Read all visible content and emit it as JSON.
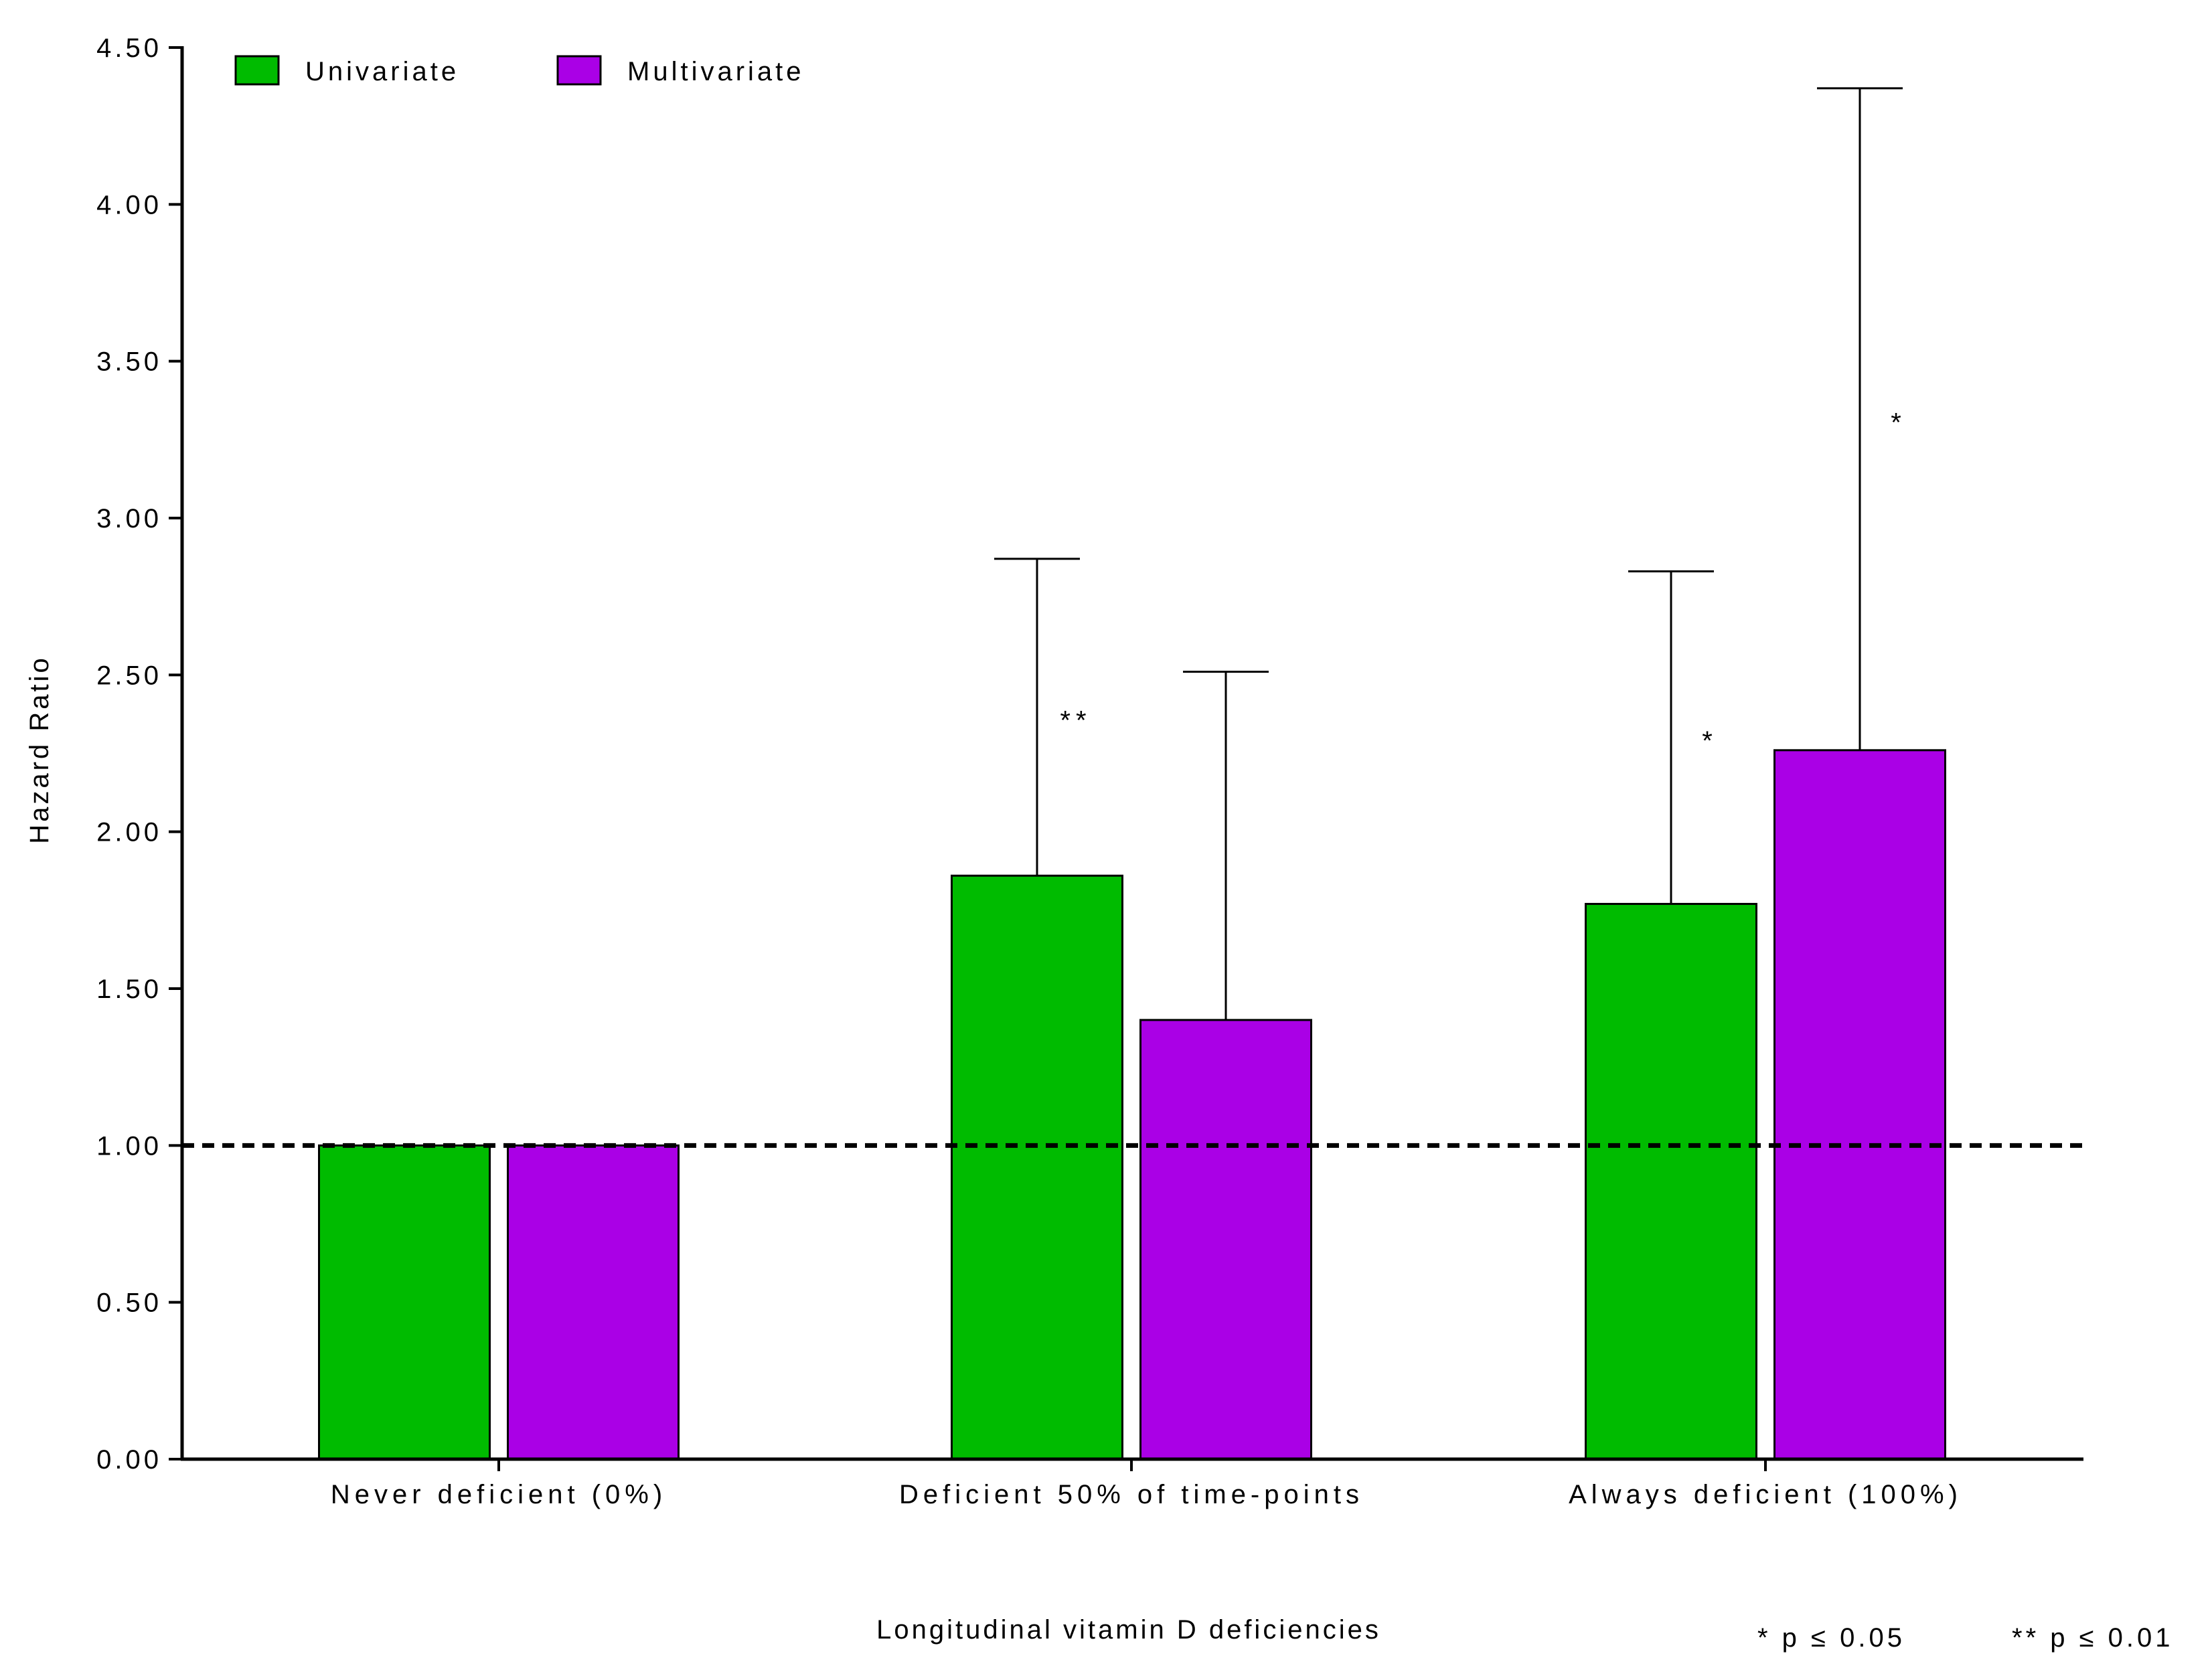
{
  "chart_data": {
    "type": "bar",
    "xlabel": "Longitudinal vitamin D deficiencies",
    "ylabel": "Hazard Ratio",
    "ylim": [
      0,
      4.5
    ],
    "yticks": [
      "0.00",
      "0.50",
      "1.00",
      "1.50",
      "2.00",
      "2.50",
      "3.00",
      "3.50",
      "4.00",
      "4.50"
    ],
    "categories": [
      "Never deficient (0%)",
      "Deficient 50% of time-points",
      "Always deficient (100%)"
    ],
    "series": [
      {
        "name": "Univariate",
        "color": "#00bb00",
        "values": [
          1.0,
          1.86,
          1.77
        ],
        "error_upper": [
          null,
          2.87,
          2.83
        ],
        "significance": [
          "",
          "**",
          "*"
        ]
      },
      {
        "name": "Multivariate",
        "color": "#aa00e6",
        "values": [
          1.0,
          1.4,
          2.26
        ],
        "error_upper": [
          null,
          2.51,
          4.37
        ],
        "significance": [
          "",
          "",
          "*"
        ]
      }
    ],
    "reference_line": 1.0,
    "legend_position": "top-left",
    "grid": false,
    "footnotes": [
      "*  p ≤ 0.05",
      "**  p ≤ 0.01"
    ]
  }
}
